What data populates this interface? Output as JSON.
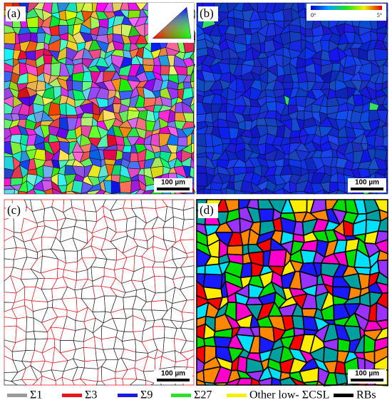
{
  "panels": [
    {
      "label": "(a)",
      "scale_bar": "100 µm"
    },
    {
      "label": "(b)",
      "scale_bar": "100 µm"
    },
    {
      "label": "(c)",
      "scale_bar": "100 µm"
    },
    {
      "label": "(d)",
      "scale_bar": "100 µm"
    }
  ],
  "colorbar": {
    "min_label": "0°",
    "max_label": "5°"
  },
  "legend": [
    {
      "name": "Σ1",
      "color": "#9a9a9a"
    },
    {
      "name": "Σ3",
      "color": "#e8141c"
    },
    {
      "name": "Σ9",
      "color": "#1c1ce0"
    },
    {
      "name": "Σ27",
      "color": "#2ee02e"
    },
    {
      "name": "Other low- ΣCSL",
      "color": "#f5f000"
    },
    {
      "name": "RBs",
      "color": "#000000"
    }
  ]
}
